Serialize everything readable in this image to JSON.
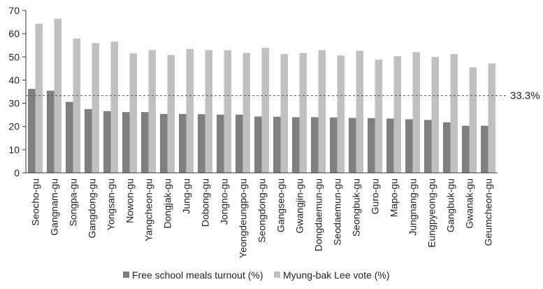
{
  "chart_data": {
    "type": "bar",
    "title": "",
    "xlabel": "",
    "ylabel": "",
    "ylim": [
      0,
      70
    ],
    "yticks": [
      "0",
      "10",
      "20",
      "30",
      "40",
      "50",
      "60",
      "70"
    ],
    "grid": false,
    "legend_position": "bottom",
    "categories": [
      "Seocho-gu",
      "Gangnam-gu",
      "Songpa-gu",
      "Gangdong-gu",
      "Yongsan-gu",
      "Nowon-gu",
      "Yangcheon-gu",
      "Dongjak-gu",
      "Jung-gu",
      "Dobong-gu",
      "Jongno-gu",
      "Yeongdeungpo-gu",
      "Seongdong-gu",
      "Gangseo-gu",
      "Gwangjin-gu",
      "Dongdaemun-gu",
      "Seodaemun-gu",
      "Seongbuk-gu",
      "Guro-gu",
      "Mapo-gu",
      "Jungnang-gu",
      "Eungpyeong-gu",
      "Gangbuk-gu",
      "Gwanak-gu",
      "Geumcheon-gu"
    ],
    "series": [
      {
        "name": "Free school meals turnout (%)",
        "color": "#7f7f7f",
        "values": [
          36.2,
          35.4,
          30.6,
          27.5,
          26.6,
          26.2,
          26.2,
          25.4,
          25.4,
          25.3,
          25.1,
          25.1,
          24.3,
          24.2,
          24.0,
          24.0,
          23.9,
          23.7,
          23.6,
          23.4,
          23.1,
          22.8,
          21.8,
          20.3,
          20.3
        ]
      },
      {
        "name": "Myung-bak Lee vote (%)",
        "color": "#c0c0c0",
        "values": [
          64.3,
          66.5,
          57.9,
          56.0,
          56.6,
          51.5,
          53.0,
          50.8,
          53.4,
          52.9,
          52.9,
          51.7,
          53.9,
          51.2,
          51.7,
          52.9,
          50.6,
          52.7,
          48.8,
          50.3,
          52.0,
          50.0,
          51.2,
          45.5,
          47.2
        ]
      }
    ],
    "reference_line": {
      "value": 33.3,
      "label": "33.3%",
      "style": "dashed"
    }
  }
}
